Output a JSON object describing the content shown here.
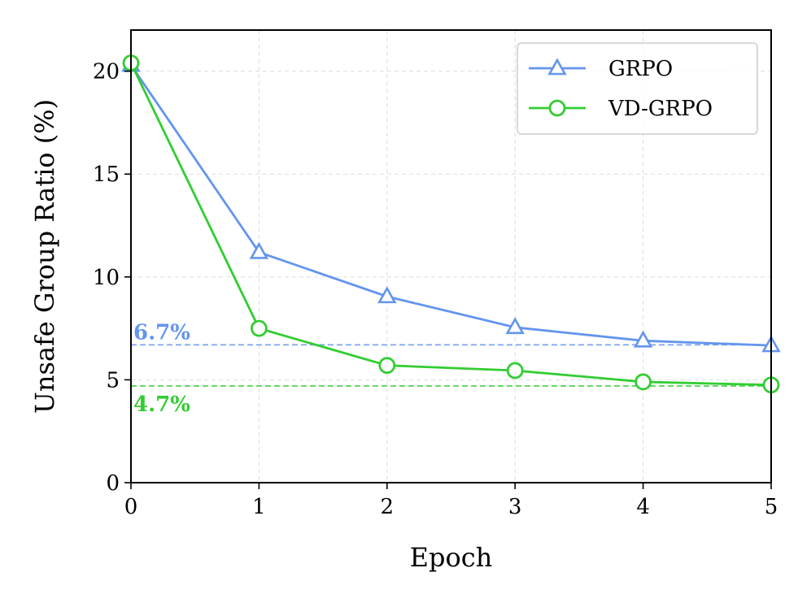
{
  "chart_data": {
    "type": "line",
    "title": "",
    "xlabel": "Epoch",
    "ylabel": "Unsafe Group Ratio (%)",
    "x": [
      0,
      1,
      2,
      3,
      4,
      5
    ],
    "xlim": [
      0,
      5
    ],
    "ylim": [
      0,
      22
    ],
    "xticks": [
      "0",
      "1",
      "2",
      "3",
      "4",
      "5"
    ],
    "yticks": [
      "0",
      "5",
      "10",
      "15",
      "20"
    ],
    "grid": true,
    "legend_position": "top-right",
    "series": [
      {
        "name": "GRPO",
        "values": [
          20.3,
          11.2,
          9.05,
          7.55,
          6.9,
          6.67
        ],
        "color": "#6495ED",
        "marker": "triangle"
      },
      {
        "name": "VD-GRPO",
        "values": [
          20.4,
          7.5,
          5.7,
          5.45,
          4.9,
          4.75
        ],
        "color": "#32CD32",
        "marker": "circle"
      }
    ],
    "reference_lines": [
      {
        "value": 6.7,
        "label": "6.7%",
        "color": "#6495ED",
        "label_side": "above"
      },
      {
        "value": 4.7,
        "label": "4.7%",
        "color": "#32CD32",
        "label_side": "below"
      }
    ]
  }
}
